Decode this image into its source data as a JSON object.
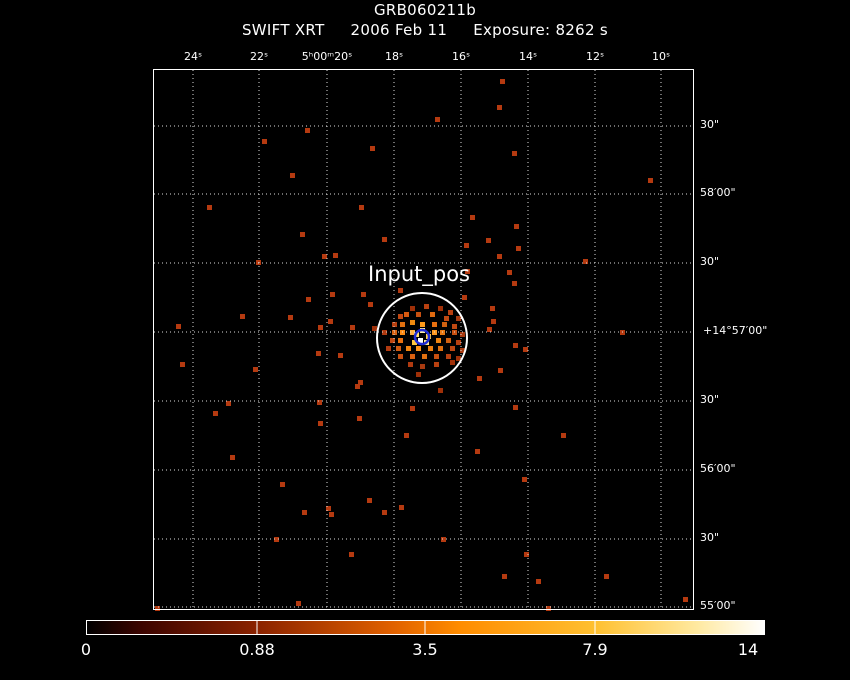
{
  "header": {
    "object": "GRB060211b",
    "instrument": "SWIFT XRT",
    "date": "2006 Feb 11",
    "exposure": "Exposure: 8262 s"
  },
  "axes": {
    "ra_ticks": [
      {
        "label": "24ˢ"
      },
      {
        "label": "22ˢ"
      },
      {
        "label": "5ʰ00ᵐ20ˢ"
      },
      {
        "label": "18ˢ"
      },
      {
        "label": "16ˢ"
      },
      {
        "label": "14ˢ"
      },
      {
        "label": "12ˢ"
      },
      {
        "label": "10ˢ"
      }
    ],
    "dec_ticks": [
      {
        "label": "30\""
      },
      {
        "label": "58′00\""
      },
      {
        "label": "30\""
      },
      {
        "label": "+14°57′00\""
      },
      {
        "label": "30\""
      },
      {
        "label": "56′00\""
      },
      {
        "label": "30\""
      },
      {
        "label": "55′00\""
      }
    ]
  },
  "source_marker": {
    "label": "Input_pos"
  },
  "colorbar": {
    "labels": [
      "0",
      "0.88",
      "3.5",
      "7.9",
      "14"
    ],
    "colors": [
      "#000000",
      "#5a0a00",
      "#a83200",
      "#ff8800",
      "#ffd040",
      "#ffffff"
    ]
  },
  "colors": {
    "grid": "#dddddd",
    "circle": "#ffffff",
    "centroid": "#1f2bd6",
    "pixel_low": "#b53a10"
  }
}
